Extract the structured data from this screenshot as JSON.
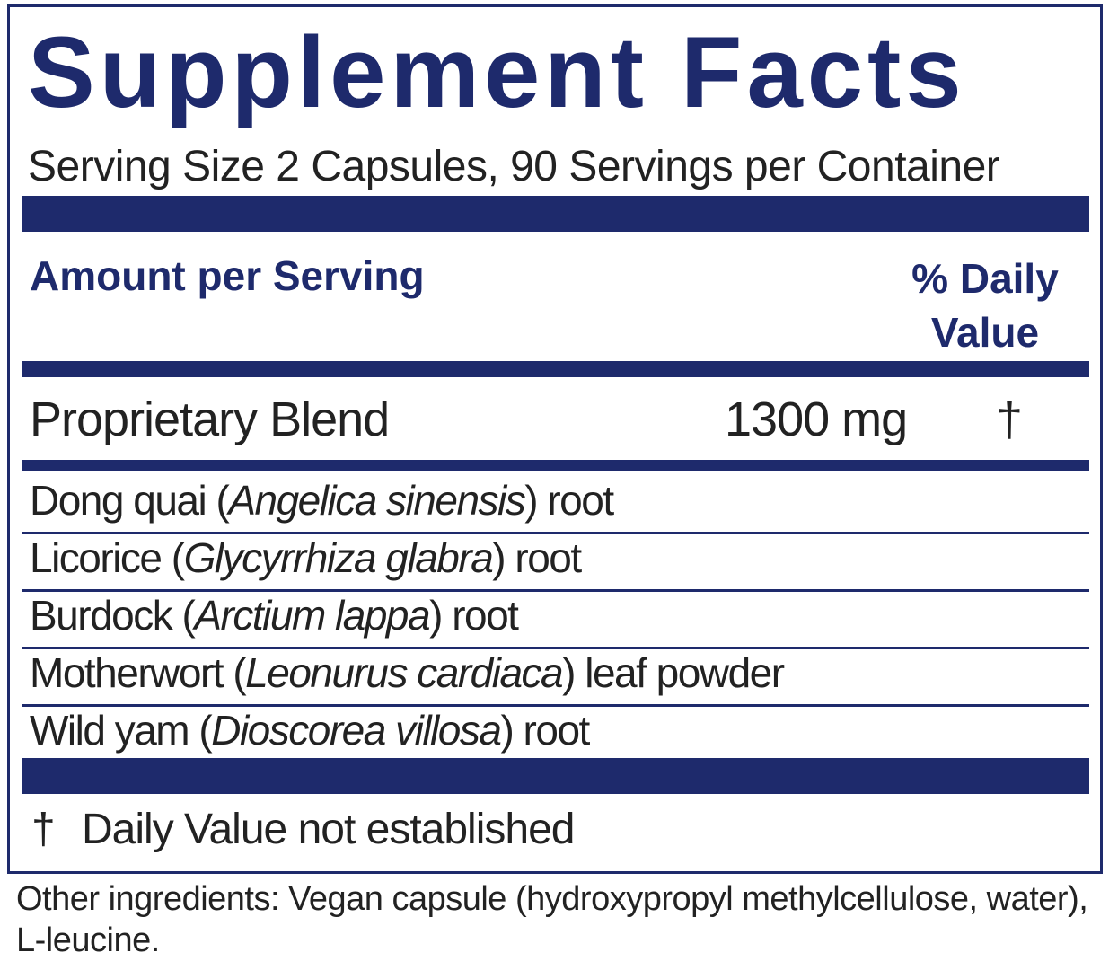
{
  "label": {
    "title": "Supplement Facts",
    "serving": "Serving Size 2 Capsules, 90 Servings per Container",
    "header": {
      "amount": "Amount per Serving",
      "daily_value": "% Daily Value"
    },
    "blend": {
      "name": "Proprietary Blend",
      "amount": "1300 mg",
      "daily_value": "†"
    },
    "ingredients": [
      {
        "name": "Dong quai (",
        "latin": "Angelica sinensis",
        "part": ") root"
      },
      {
        "name": "Licorice (",
        "latin": "Glycyrrhiza glabra",
        "part": ") root"
      },
      {
        "name": "Burdock (",
        "latin": "Arctium lappa",
        "part": ") root"
      },
      {
        "name": "Motherwort (",
        "latin": "Leonurus cardiaca",
        "part": ") leaf powder"
      },
      {
        "name": "Wild yam (",
        "latin": "Dioscorea villosa",
        "part": ") root"
      }
    ],
    "footnote": {
      "symbol": "†",
      "text": "Daily Value not established"
    }
  },
  "other_ingredients": "Other ingredients: Vegan capsule (hydroxypropyl methylcellulose, water), L-leucine."
}
